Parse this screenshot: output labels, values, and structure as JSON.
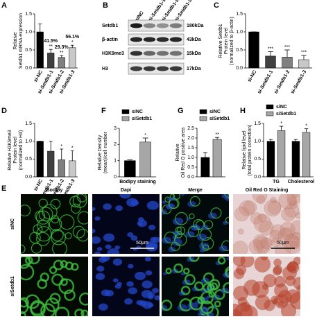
{
  "chart_data": [
    {
      "type": "bar",
      "label": "A",
      "ylabel": [
        "Relative",
        "Setdb1 mRNA expression"
      ],
      "categories": [
        "si-NC",
        "si-Setdb1-1",
        "si-Setdb1-2",
        "si-Setdb1-3"
      ],
      "values": [
        1.0,
        0.415,
        0.293,
        0.561
      ],
      "errors": [
        0.22,
        0.1,
        0.05,
        0.07
      ],
      "value_labels": [
        null,
        "41.5%",
        "29.3%",
        "56.1%"
      ],
      "significance": [
        null,
        "**",
        "**",
        "*"
      ],
      "colors": [
        "#000000",
        "#404040",
        "#808080",
        "#c8c8c8"
      ],
      "ylim": [
        0,
        1.5
      ],
      "yticks": [
        {
          "value": 0,
          "label": "0.0"
        },
        {
          "value": 0.5,
          "label": "0.5"
        },
        {
          "value": 1,
          "label": "1.0"
        },
        {
          "value": 1.5,
          "label": "1.5"
        }
      ]
    },
    {
      "type": "bar",
      "label": "C",
      "ylabel": [
        "Relative Setdb1",
        "Protein level",
        "(normalized to β-actin)"
      ],
      "categories": [
        "si-NC",
        "si-Setdb1-1",
        "si-Setdb1-2",
        "si-Setdb1-3"
      ],
      "values": [
        1.0,
        0.33,
        0.3,
        0.23
      ],
      "errors": [
        0,
        0.12,
        0.2,
        0.12
      ],
      "significance": [
        null,
        "***",
        "***",
        "***"
      ],
      "colors": [
        "#000000",
        "#404040",
        "#808080",
        "#c8c8c8"
      ],
      "ylim": [
        0,
        1.5
      ],
      "yticks": [
        {
          "value": 0,
          "label": "0.0"
        },
        {
          "value": 0.5,
          "label": "0.5"
        },
        {
          "value": 1,
          "label": "1.0"
        },
        {
          "value": 1.5,
          "label": "1.5"
        }
      ]
    },
    {
      "type": "bar",
      "label": "D",
      "ylabel": [
        "Relative H3K9me3",
        "Protein level",
        "(normalized to H3)"
      ],
      "categories": [
        "si-NC",
        "si-Setdb1-1",
        "si-Setdb1-2",
        "si-Setdb1-3"
      ],
      "values": [
        1.0,
        0.72,
        0.48,
        0.45
      ],
      "errors": [
        0,
        0.28,
        0.3,
        0.28
      ],
      "significance": [
        null,
        null,
        "*",
        "*"
      ],
      "colors": [
        "#000000",
        "#404040",
        "#808080",
        "#c8c8c8"
      ],
      "ylim": [
        0,
        1.5
      ],
      "yticks": [
        {
          "value": 0,
          "label": "0.0"
        },
        {
          "value": 0.5,
          "label": "0.5"
        },
        {
          "value": 1,
          "label": "1.0"
        },
        {
          "value": 1.5,
          "label": "1.5"
        }
      ]
    },
    {
      "type": "bar",
      "label": "F",
      "ylabel": [
        "Relative Density",
        "(mean)/cell number"
      ],
      "categories": [
        "Bodipy staining"
      ],
      "series": [
        {
          "name": "siNC",
          "color": "#000000",
          "values": [
            1.0
          ],
          "errors": [
            0.05
          ],
          "significance": [
            null
          ]
        },
        {
          "name": "siSetdb1",
          "color": "#a6a6a6",
          "values": [
            2.15
          ],
          "errors": [
            0.25
          ],
          "significance": [
            "*"
          ]
        }
      ],
      "ylim": [
        0,
        3
      ],
      "yticks": [
        0,
        1,
        2,
        3
      ]
    },
    {
      "type": "bar",
      "label": "G",
      "ylabel": [
        "Relative",
        "Oil Red O positive area"
      ],
      "categories": [
        null
      ],
      "series": [
        {
          "name": "siNC",
          "color": "#000000",
          "values": [
            1.0
          ],
          "errors": [
            0.25
          ],
          "significance": [
            null
          ]
        },
        {
          "name": "siSetdb1",
          "color": "#a6a6a6",
          "values": [
            1.93
          ],
          "errors": [
            0.1
          ],
          "significance": [
            "**"
          ]
        }
      ],
      "ylim": [
        0,
        2.5
      ],
      "yticks": [
        {
          "value": 0,
          "label": "0.0"
        },
        {
          "value": 0.5,
          "label": "0.5"
        },
        {
          "value": 1,
          "label": "1.0"
        },
        {
          "value": 1.5,
          "label": "1.5"
        },
        {
          "value": 2,
          "label": "2.0"
        },
        {
          "value": 2.5,
          "label": "2.5"
        }
      ]
    },
    {
      "type": "bar",
      "label": "H",
      "ylabel": [
        "Relative lipid level",
        "(total protein correction)"
      ],
      "categories": [
        "TG",
        "Cholesterol"
      ],
      "series": [
        {
          "name": "siNC",
          "color": "#000000",
          "values": [
            1.0,
            1.0
          ],
          "errors": [
            0.05,
            0.05
          ],
          "significance": [
            null,
            null
          ]
        },
        {
          "name": "siSetdb1",
          "color": "#a6a6a6",
          "values": [
            1.3,
            1.25
          ],
          "errors": [
            0.12,
            0.1
          ],
          "significance": [
            "*",
            "*"
          ]
        }
      ],
      "ylim": [
        0,
        1.5
      ],
      "yticks": [
        {
          "value": 0,
          "label": "0.0"
        },
        {
          "value": 0.5,
          "label": "0.5"
        },
        {
          "value": 1,
          "label": "1.0"
        },
        {
          "value": 1.5,
          "label": "1.5"
        }
      ]
    }
  ],
  "blot": {
    "label": "B",
    "lanes": [
      "siNC",
      "si-Setdb1-1",
      "si-Setdb1-2",
      "si-Setdb1-3"
    ],
    "rows": [
      {
        "protein": "Setdb1",
        "size": "180kDa"
      },
      {
        "protein": "β-actin",
        "size": "43kDa"
      },
      {
        "protein": "H3K9me3",
        "size": "15kDa"
      },
      {
        "protein": "H3",
        "size": "17kDa"
      }
    ]
  },
  "images": {
    "label": "E",
    "columns": [
      "Bodipy",
      "Dapi",
      "Merge",
      "Oil Red O Staining"
    ],
    "rows": [
      "siNC",
      "siSetdb1"
    ],
    "scale_bar": "50μm"
  }
}
